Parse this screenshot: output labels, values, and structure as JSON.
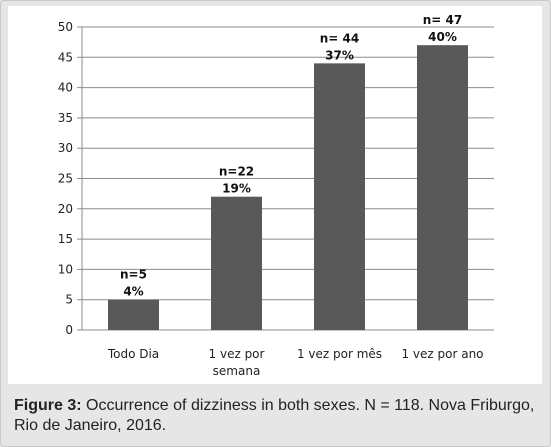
{
  "chart_data": {
    "type": "bar",
    "categories": [
      "Todo Dia",
      "1 vez por semana",
      "1 vez por mês",
      "1 vez por ano"
    ],
    "category_lines": [
      [
        "Todo Dia"
      ],
      [
        "1 vez por",
        "semana"
      ],
      [
        "1 vez por mês"
      ],
      [
        "1 vez por ano"
      ]
    ],
    "values": [
      5,
      22,
      44,
      47
    ],
    "data_labels": [
      {
        "n": "n=5",
        "pct": "4%"
      },
      {
        "n": "n=22",
        "pct": "19%"
      },
      {
        "n": "n= 44",
        "pct": "37%"
      },
      {
        "n": "n= 47",
        "pct": "40%"
      }
    ],
    "ylim": [
      0,
      50
    ],
    "y_ticks": [
      0,
      5,
      10,
      15,
      20,
      25,
      30,
      35,
      40,
      45,
      50
    ],
    "grid": true,
    "bar_color": "#595959"
  },
  "caption": {
    "lead": "Figure 3:",
    "text": " Occurrence of dizziness in both sexes. N = 118. Nova Friburgo, Rio de Janeiro, 2016."
  }
}
